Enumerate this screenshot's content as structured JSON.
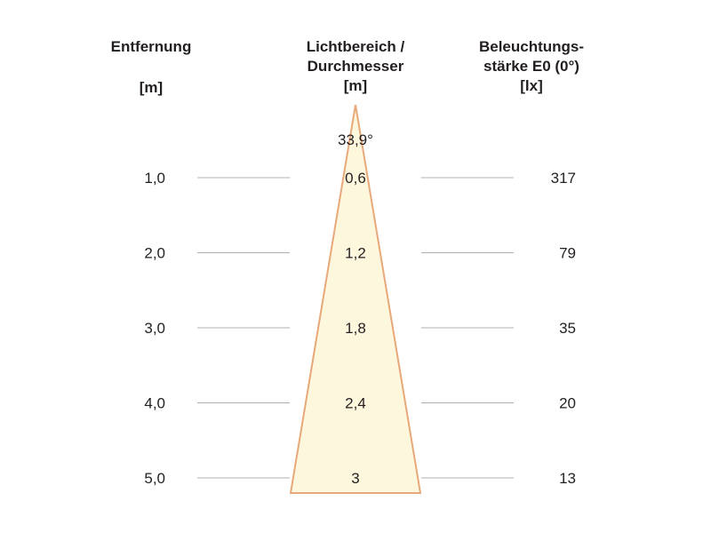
{
  "headers": {
    "distance": {
      "label": "Entfernung",
      "unit": "[m]"
    },
    "beam": {
      "label_line1": "Lichtbereich /",
      "label_line2": "Durchmesser",
      "unit": "[m]"
    },
    "illuminance": {
      "label_line1": "Beleuchtungs-",
      "label_line2": "stärke E0 (0°)",
      "unit": "[lx]"
    }
  },
  "beam_angle": "33,9°",
  "colors": {
    "cone_fill": "#fdf7dd",
    "cone_edge": "#e8a97a",
    "rule": "#b0b0b0",
    "text": "#231f20"
  },
  "chart_data": {
    "type": "table",
    "rows": [
      {
        "distance": "1,0",
        "diameter": "0,6",
        "lux": "317"
      },
      {
        "distance": "2,0",
        "diameter": "1,2",
        "lux": "79"
      },
      {
        "distance": "3,0",
        "diameter": "1,8",
        "lux": "35"
      },
      {
        "distance": "4,0",
        "diameter": "2,4",
        "lux": "20"
      },
      {
        "distance": "5,0",
        "diameter": "3",
        "lux": "13"
      }
    ]
  }
}
